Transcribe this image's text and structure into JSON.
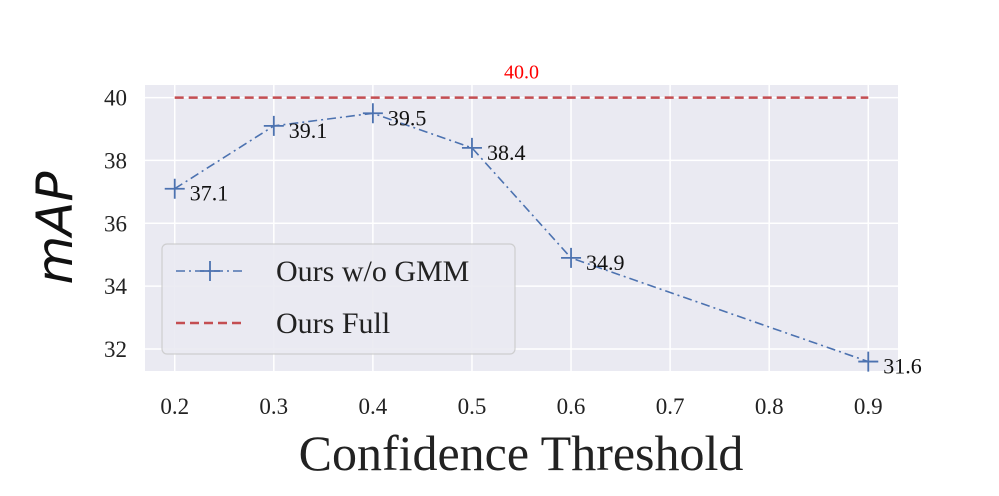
{
  "chart_data": {
    "type": "line",
    "xlabel": "Confidence Threshold",
    "ylabel": "mAP",
    "xlim": [
      0.17,
      0.93
    ],
    "ylim": [
      31.3,
      40.4
    ],
    "xticks": [
      "0.2",
      "0.3",
      "0.4",
      "0.5",
      "0.6",
      "0.7",
      "0.8",
      "0.9"
    ],
    "yticks": [
      "32",
      "34",
      "36",
      "38",
      "40"
    ],
    "grid": true,
    "legend_position": "center-left",
    "series": [
      {
        "name": "Ours w/o GMM",
        "color": "#4c72b0",
        "style": "dash-dot",
        "marker": "plus",
        "x": [
          0.2,
          0.3,
          0.4,
          0.5,
          0.6,
          0.9
        ],
        "y": [
          37.1,
          39.1,
          39.5,
          38.4,
          34.9,
          31.6
        ],
        "labels": [
          "37.1",
          "39.1",
          "39.5",
          "38.4",
          "34.9",
          "31.6"
        ]
      },
      {
        "name": "Ours Full",
        "color": "#c44e52",
        "style": "dashed",
        "x": [
          0.2,
          0.9
        ],
        "y": [
          40.0,
          40.0
        ],
        "label": "40.0",
        "label_color": "#ff0000"
      }
    ]
  }
}
